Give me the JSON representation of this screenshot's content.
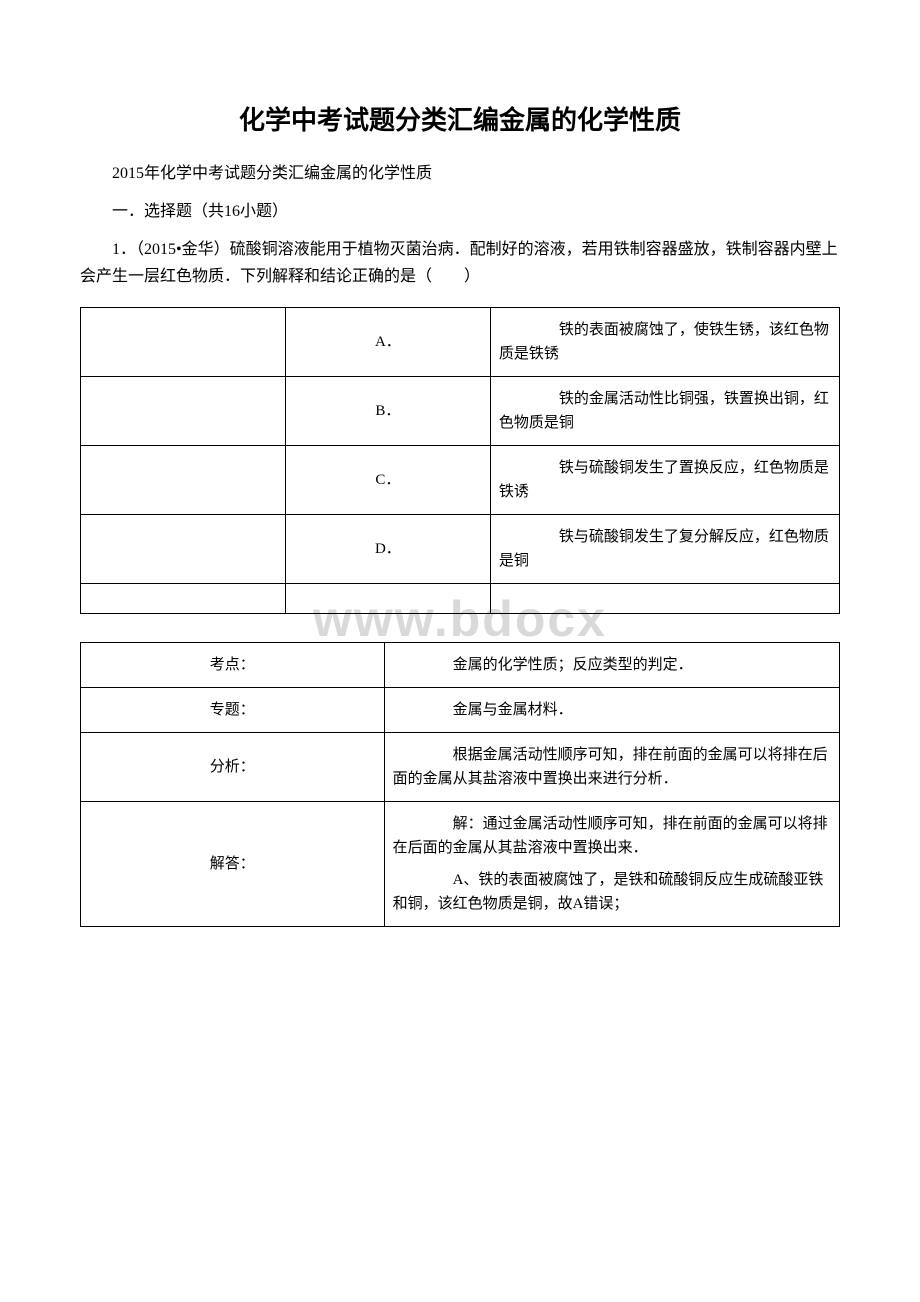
{
  "watermark": "www.bdocx",
  "title": "化学中考试题分类汇编金属的化学性质",
  "intro": "2015年化学中考试题分类汇编金属的化学性质",
  "section_header": "一．选择题（共16小题）",
  "question1": {
    "text": "1．（2015•金华）硫酸铜溶液能用于植物灭菌治病．配制好的溶液，若用铁制容器盛放，铁制容器内壁上会产生一层红色物质．下列解释和结论正确的是（　　）",
    "options": [
      {
        "label": "A．",
        "text": "　　铁的表面被腐蚀了，使铁生锈，该红色物质是铁锈"
      },
      {
        "label": "B．",
        "text": "　　铁的金属活动性比铜强，铁置换出铜，红色物质是铜"
      },
      {
        "label": "C．",
        "text": "　　铁与硫酸铜发生了置换反应，红色物质是铁诱"
      },
      {
        "label": "D．",
        "text": "　　铁与硫酸铜发生了复分解反应，红色物质是铜"
      }
    ]
  },
  "analysis": {
    "rows": [
      {
        "label": "考点：",
        "content": "　　金属的化学性质；反应类型的判定．"
      },
      {
        "label": "专题：",
        "content": "　　金属与金属材料．"
      },
      {
        "label": "分析：",
        "content": "　　根据金属活动性顺序可知，排在前面的金属可以将排在后面的金属从其盐溶液中置换出来进行分析．"
      },
      {
        "label": "解答：",
        "paragraphs": [
          "　　解：通过金属活动性顺序可知，排在前面的金属可以将排在后面的金属从其盐溶液中置换出来．",
          "　　A、铁的表面被腐蚀了，是铁和硫酸铜反应生成硫酸亚铁和铜，该红色物质是铜，故A错误；"
        ]
      }
    ]
  }
}
